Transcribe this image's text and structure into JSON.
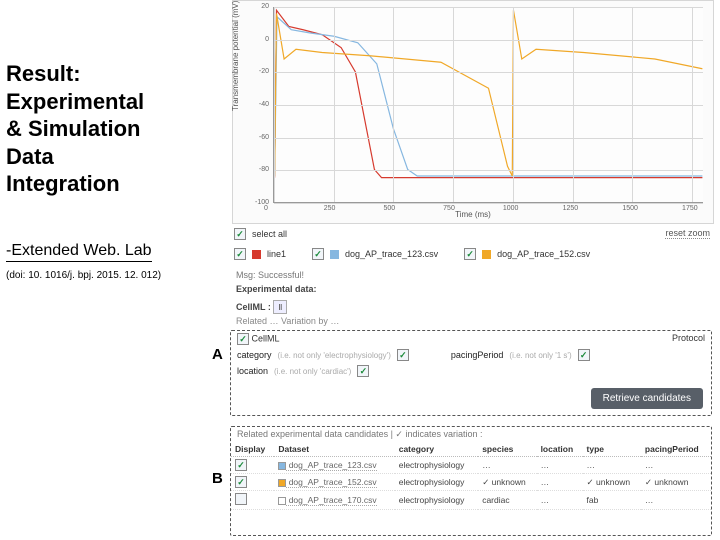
{
  "left": {
    "title_l1": "Result:",
    "title_l2": "Experimental",
    "title_l3": "& Simulation",
    "title_l4": "Data",
    "title_l5": "Integration",
    "subtitle": "-Extended Web. Lab",
    "doi": "(doi: 10. 1016/j. bpj. 2015. 12. 012)"
  },
  "chart": {
    "type": "line",
    "ylabel": "Transmembrane potential (mV)",
    "xlabel": "Time (ms)",
    "xlim": [
      0,
      1800
    ],
    "ylim": [
      -100,
      20
    ],
    "xticks": [
      0,
      250,
      500,
      750,
      1000,
      1250,
      1500,
      1750
    ],
    "yticks": [
      -100,
      -80,
      -60,
      -40,
      -20,
      0,
      20
    ],
    "background_color": "#fdfdfd",
    "grid_color": "#d8d8d8",
    "series": [
      {
        "name": "line1",
        "color": "#d63a2e",
        "width": 1.2,
        "points": [
          [
            0,
            -85
          ],
          [
            8,
            18
          ],
          [
            60,
            8
          ],
          [
            120,
            6
          ],
          [
            200,
            3
          ],
          [
            280,
            -5
          ],
          [
            340,
            -20
          ],
          [
            380,
            -50
          ],
          [
            420,
            -80
          ],
          [
            450,
            -85
          ],
          [
            1800,
            -85
          ]
        ]
      },
      {
        "name": "dog_AP_trace_123.csv",
        "color": "#86b7e0",
        "width": 1.2,
        "points": [
          [
            0,
            -84
          ],
          [
            10,
            14
          ],
          [
            70,
            6
          ],
          [
            150,
            4
          ],
          [
            250,
            2
          ],
          [
            350,
            -2
          ],
          [
            430,
            -15
          ],
          [
            500,
            -55
          ],
          [
            560,
            -80
          ],
          [
            600,
            -84
          ],
          [
            1800,
            -84
          ]
        ]
      },
      {
        "name": "dog_AP_trace_152.csv",
        "color": "#f0a828",
        "width": 1.2,
        "points": [
          [
            0,
            -84
          ],
          [
            8,
            16
          ],
          [
            40,
            -12
          ],
          [
            90,
            -6
          ],
          [
            200,
            -8
          ],
          [
            400,
            -10
          ],
          [
            700,
            -14
          ],
          [
            900,
            -30
          ],
          [
            980,
            -78
          ],
          [
            1000,
            -84
          ],
          [
            1005,
            18
          ],
          [
            1040,
            -12
          ],
          [
            1100,
            -6
          ],
          [
            1300,
            -8
          ],
          [
            1600,
            -12
          ],
          [
            1800,
            -18
          ]
        ]
      }
    ]
  },
  "controls": {
    "select_all": {
      "label": "select all",
      "checked": true
    },
    "reset_zoom": "reset zoom",
    "legend": [
      {
        "color": "#d63a2e",
        "label": "line1",
        "checked": true
      },
      {
        "color": "#86b7e0",
        "label": "dog_AP_trace_123.csv",
        "checked": true
      },
      {
        "color": "#f0a828",
        "label": "dog_AP_trace_152.csv",
        "checked": true
      }
    ]
  },
  "msg": "Msg: Successful!",
  "exp_label": "Experimental data:",
  "cellml_label": "CellML :",
  "related_label": "Related … Variation by …",
  "panelA": {
    "letter": "A",
    "head": "CellML",
    "protocol_label": "Protocol",
    "row1": {
      "k1": "category",
      "h1": "(i.e. not only 'electrophysiology')",
      "k2": "pacingPeriod",
      "h2": "(i.e. not only '1 s')"
    },
    "row2": {
      "k1": "location",
      "h1": "(i.e. not only 'cardiac')"
    },
    "button": "Retrieve candidates"
  },
  "panelB": {
    "letter": "B",
    "head": "Related experimental data candidates  |  ✓ indicates variation :",
    "columns": [
      "Display",
      "Dataset",
      "category",
      "species",
      "location",
      "type",
      "pacingPeriod"
    ],
    "rows": [
      {
        "display": true,
        "swatch": "#86b7e0",
        "dataset": "dog_AP_trace_123.csv",
        "category": "electrophysiology",
        "species": "…",
        "location": "…",
        "type": "…",
        "pacing": "…"
      },
      {
        "display": true,
        "swatch": "#f0a828",
        "dataset": "dog_AP_trace_152.csv",
        "category": "electrophysiology",
        "species": "✓ unknown",
        "location": "…",
        "type": "✓ unknown",
        "pacing": "✓ unknown"
      },
      {
        "display": false,
        "swatch": "#ffffff",
        "dataset": "dog_AP_trace_170.csv",
        "category": "electrophysiology",
        "species": "cardiac",
        "location": "…",
        "type": "fab",
        "pacing": "…"
      }
    ]
  }
}
